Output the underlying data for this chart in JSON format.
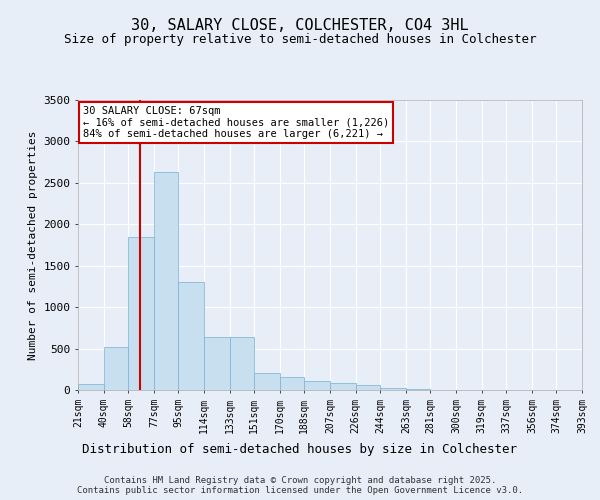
{
  "title": "30, SALARY CLOSE, COLCHESTER, CO4 3HL",
  "subtitle": "Size of property relative to semi-detached houses in Colchester",
  "xlabel": "Distribution of semi-detached houses by size in Colchester",
  "ylabel": "Number of semi-detached properties",
  "annotation_line1": "30 SALARY CLOSE: 67sqm",
  "annotation_line2": "← 16% of semi-detached houses are smaller (1,226)",
  "annotation_line3": "84% of semi-detached houses are larger (6,221) →",
  "footer_line1": "Contains HM Land Registry data © Crown copyright and database right 2025.",
  "footer_line2": "Contains public sector information licensed under the Open Government Licence v3.0.",
  "property_size": 67,
  "bin_edges": [
    21,
    40,
    58,
    77,
    95,
    114,
    133,
    151,
    170,
    188,
    207,
    226,
    244,
    263,
    281,
    300,
    319,
    337,
    356,
    374,
    393
  ],
  "bin_labels": [
    "21sqm",
    "40sqm",
    "58sqm",
    "77sqm",
    "95sqm",
    "114sqm",
    "133sqm",
    "151sqm",
    "170sqm",
    "188sqm",
    "207sqm",
    "226sqm",
    "244sqm",
    "263sqm",
    "281sqm",
    "300sqm",
    "319sqm",
    "337sqm",
    "356sqm",
    "374sqm",
    "393sqm"
  ],
  "bar_heights": [
    75,
    520,
    1850,
    2630,
    1300,
    640,
    640,
    200,
    160,
    110,
    80,
    60,
    30,
    10,
    5,
    2,
    1,
    0,
    0,
    0
  ],
  "bar_color": "#c8dff0",
  "bar_edge_color": "#7aafd4",
  "vline_x": 67,
  "vline_color": "#cc0000",
  "ylim": [
    0,
    3500
  ],
  "yticks": [
    0,
    500,
    1000,
    1500,
    2000,
    2500,
    3000,
    3500
  ],
  "bg_color": "#e8eef8",
  "grid_color": "#ffffff",
  "annotation_box_color": "#ffffff",
  "annotation_box_edge": "#cc0000",
  "title_fontsize": 11,
  "subtitle_fontsize": 9,
  "ylabel_fontsize": 8,
  "xlabel_fontsize": 9
}
